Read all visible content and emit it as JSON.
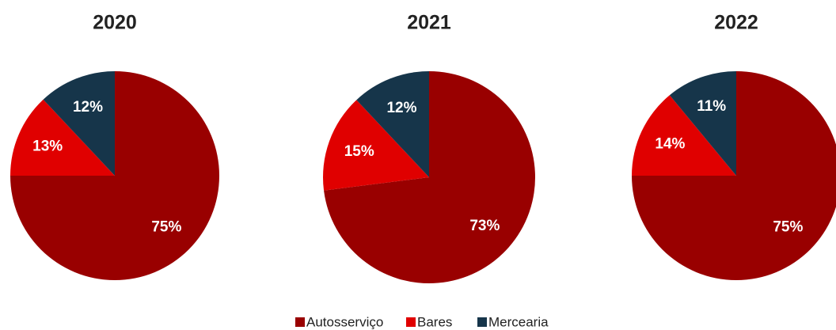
{
  "chart_data": [
    {
      "type": "pie",
      "title": "2020",
      "categories": [
        "Autosserviço",
        "Bares",
        "Mercearia"
      ],
      "values": [
        75,
        13,
        12
      ],
      "value_labels": [
        "75%",
        "13%",
        "12%"
      ],
      "colors": [
        "#990000",
        "#e00000",
        "#16354a"
      ],
      "legend": "bottom"
    },
    {
      "type": "pie",
      "title": "2021",
      "categories": [
        "Autosserviço",
        "Bares",
        "Mercearia"
      ],
      "values": [
        73,
        15,
        12
      ],
      "value_labels": [
        "73%",
        "15%",
        "12%"
      ],
      "colors": [
        "#990000",
        "#e00000",
        "#16354a"
      ]
    },
    {
      "type": "pie",
      "title": "2022",
      "categories": [
        "Autosserviço",
        "Bares",
        "Mercearia"
      ],
      "values": [
        75,
        14,
        11
      ],
      "value_labels": [
        "75%",
        "14%",
        "11%"
      ],
      "colors": [
        "#990000",
        "#e00000",
        "#16354a"
      ]
    }
  ]
}
